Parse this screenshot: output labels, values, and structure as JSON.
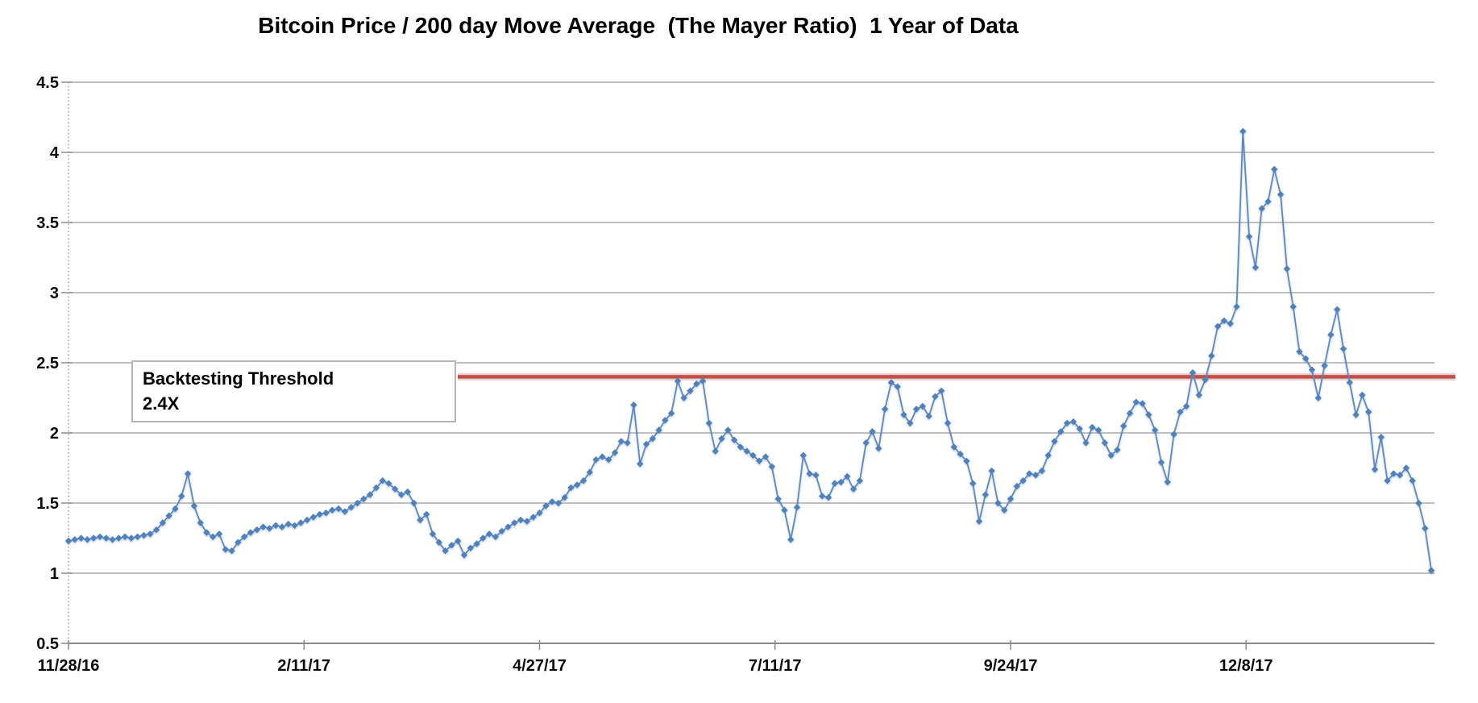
{
  "title": "Bitcoin Price / 200 day Move Average  (The Mayer Ratio)  1 Year of Data",
  "colors": {
    "series_marker": "#4f81bd",
    "series_line": "#5d8ac4",
    "threshold_line": "#bf514b",
    "threshold_glow": "#e2aba7",
    "gridline": "#9b9b9b",
    "axis_line": "#8a8a8a",
    "tick_text": "#0a0a0a"
  },
  "annotation": {
    "line1": "Backtesting Threshold",
    "line2": "2.4X"
  },
  "chart_data": {
    "type": "line",
    "title": "Bitcoin Price / 200 day Move Average  (The Mayer Ratio)  1 Year of Data",
    "marker": "diamond",
    "grid": true,
    "legend": "none",
    "xlabel": "",
    "ylabel": "",
    "ylim": [
      0.5,
      4.5
    ],
    "y_tick_step": 0.5,
    "y_tick_labels": [
      "0.5",
      "1",
      "1.5",
      "2",
      "2.5",
      "3",
      "3.5",
      "4",
      "4.5"
    ],
    "x_range_days": [
      0,
      435
    ],
    "x_tick_days": [
      0,
      75,
      150,
      225,
      300,
      375
    ],
    "x_tick_labels": [
      "11/28/16",
      "2/11/17",
      "4/27/17",
      "7/11/17",
      "9/24/17",
      "12/8/17"
    ],
    "threshold": {
      "value": 2.4,
      "label_line1": "Backtesting Threshold",
      "label_line2": "2.4X"
    },
    "points": [
      [
        0,
        1.23
      ],
      [
        2,
        1.24
      ],
      [
        4,
        1.25
      ],
      [
        6,
        1.24
      ],
      [
        8,
        1.25
      ],
      [
        10,
        1.26
      ],
      [
        12,
        1.25
      ],
      [
        14,
        1.24
      ],
      [
        16,
        1.25
      ],
      [
        18,
        1.26
      ],
      [
        20,
        1.25
      ],
      [
        22,
        1.26
      ],
      [
        24,
        1.27
      ],
      [
        26,
        1.28
      ],
      [
        28,
        1.31
      ],
      [
        30,
        1.36
      ],
      [
        32,
        1.41
      ],
      [
        34,
        1.46
      ],
      [
        36,
        1.55
      ],
      [
        38,
        1.71
      ],
      [
        40,
        1.48
      ],
      [
        42,
        1.36
      ],
      [
        44,
        1.29
      ],
      [
        46,
        1.26
      ],
      [
        48,
        1.28
      ],
      [
        50,
        1.17
      ],
      [
        52,
        1.16
      ],
      [
        54,
        1.22
      ],
      [
        56,
        1.26
      ],
      [
        58,
        1.29
      ],
      [
        60,
        1.31
      ],
      [
        62,
        1.33
      ],
      [
        64,
        1.32
      ],
      [
        66,
        1.34
      ],
      [
        68,
        1.33
      ],
      [
        70,
        1.35
      ],
      [
        72,
        1.34
      ],
      [
        74,
        1.36
      ],
      [
        76,
        1.38
      ],
      [
        78,
        1.4
      ],
      [
        80,
        1.42
      ],
      [
        82,
        1.43
      ],
      [
        84,
        1.45
      ],
      [
        86,
        1.46
      ],
      [
        88,
        1.44
      ],
      [
        90,
        1.47
      ],
      [
        92,
        1.5
      ],
      [
        94,
        1.53
      ],
      [
        96,
        1.56
      ],
      [
        98,
        1.61
      ],
      [
        100,
        1.66
      ],
      [
        102,
        1.64
      ],
      [
        104,
        1.6
      ],
      [
        106,
        1.56
      ],
      [
        108,
        1.58
      ],
      [
        110,
        1.5
      ],
      [
        112,
        1.38
      ],
      [
        114,
        1.42
      ],
      [
        116,
        1.28
      ],
      [
        118,
        1.22
      ],
      [
        120,
        1.16
      ],
      [
        122,
        1.2
      ],
      [
        124,
        1.23
      ],
      [
        126,
        1.13
      ],
      [
        128,
        1.18
      ],
      [
        130,
        1.21
      ],
      [
        132,
        1.25
      ],
      [
        134,
        1.28
      ],
      [
        136,
        1.26
      ],
      [
        138,
        1.3
      ],
      [
        140,
        1.33
      ],
      [
        142,
        1.36
      ],
      [
        144,
        1.38
      ],
      [
        146,
        1.37
      ],
      [
        148,
        1.4
      ],
      [
        150,
        1.43
      ],
      [
        152,
        1.48
      ],
      [
        154,
        1.51
      ],
      [
        156,
        1.5
      ],
      [
        158,
        1.54
      ],
      [
        160,
        1.61
      ],
      [
        162,
        1.63
      ],
      [
        164,
        1.66
      ],
      [
        166,
        1.72
      ],
      [
        168,
        1.81
      ],
      [
        170,
        1.83
      ],
      [
        172,
        1.81
      ],
      [
        174,
        1.86
      ],
      [
        176,
        1.94
      ],
      [
        178,
        1.93
      ],
      [
        180,
        2.2
      ],
      [
        182,
        1.78
      ],
      [
        184,
        1.92
      ],
      [
        186,
        1.96
      ],
      [
        188,
        2.02
      ],
      [
        190,
        2.09
      ],
      [
        192,
        2.14
      ],
      [
        194,
        2.37
      ],
      [
        196,
        2.25
      ],
      [
        198,
        2.3
      ],
      [
        200,
        2.35
      ],
      [
        202,
        2.37
      ],
      [
        204,
        2.07
      ],
      [
        206,
        1.87
      ],
      [
        208,
        1.96
      ],
      [
        210,
        2.02
      ],
      [
        212,
        1.95
      ],
      [
        214,
        1.9
      ],
      [
        216,
        1.87
      ],
      [
        218,
        1.84
      ],
      [
        220,
        1.8
      ],
      [
        222,
        1.83
      ],
      [
        224,
        1.76
      ],
      [
        226,
        1.53
      ],
      [
        228,
        1.45
      ],
      [
        230,
        1.24
      ],
      [
        232,
        1.47
      ],
      [
        234,
        1.84
      ],
      [
        236,
        1.71
      ],
      [
        238,
        1.7
      ],
      [
        240,
        1.55
      ],
      [
        242,
        1.54
      ],
      [
        244,
        1.64
      ],
      [
        246,
        1.65
      ],
      [
        248,
        1.69
      ],
      [
        250,
        1.6
      ],
      [
        252,
        1.66
      ],
      [
        254,
        1.93
      ],
      [
        256,
        2.01
      ],
      [
        258,
        1.89
      ],
      [
        260,
        2.17
      ],
      [
        262,
        2.36
      ],
      [
        264,
        2.33
      ],
      [
        266,
        2.13
      ],
      [
        268,
        2.07
      ],
      [
        270,
        2.17
      ],
      [
        272,
        2.19
      ],
      [
        274,
        2.12
      ],
      [
        276,
        2.26
      ],
      [
        278,
        2.3
      ],
      [
        280,
        2.07
      ],
      [
        282,
        1.9
      ],
      [
        284,
        1.85
      ],
      [
        286,
        1.8
      ],
      [
        288,
        1.64
      ],
      [
        290,
        1.37
      ],
      [
        292,
        1.56
      ],
      [
        294,
        1.73
      ],
      [
        296,
        1.5
      ],
      [
        298,
        1.45
      ],
      [
        300,
        1.53
      ],
      [
        302,
        1.62
      ],
      [
        304,
        1.66
      ],
      [
        306,
        1.71
      ],
      [
        308,
        1.7
      ],
      [
        310,
        1.73
      ],
      [
        312,
        1.84
      ],
      [
        314,
        1.94
      ],
      [
        316,
        2.01
      ],
      [
        318,
        2.07
      ],
      [
        320,
        2.08
      ],
      [
        322,
        2.03
      ],
      [
        324,
        1.93
      ],
      [
        326,
        2.04
      ],
      [
        328,
        2.02
      ],
      [
        330,
        1.93
      ],
      [
        332,
        1.84
      ],
      [
        334,
        1.88
      ],
      [
        336,
        2.05
      ],
      [
        338,
        2.14
      ],
      [
        340,
        2.22
      ],
      [
        342,
        2.21
      ],
      [
        344,
        2.13
      ],
      [
        346,
        2.02
      ],
      [
        348,
        1.79
      ],
      [
        350,
        1.65
      ],
      [
        352,
        1.99
      ],
      [
        354,
        2.15
      ],
      [
        356,
        2.19
      ],
      [
        358,
        2.43
      ],
      [
        360,
        2.27
      ],
      [
        362,
        2.38
      ],
      [
        364,
        2.55
      ],
      [
        366,
        2.76
      ],
      [
        368,
        2.8
      ],
      [
        370,
        2.78
      ],
      [
        372,
        2.9
      ],
      [
        374,
        4.15
      ],
      [
        376,
        3.4
      ],
      [
        378,
        3.18
      ],
      [
        380,
        3.6
      ],
      [
        382,
        3.65
      ],
      [
        384,
        3.88
      ],
      [
        386,
        3.7
      ],
      [
        388,
        3.17
      ],
      [
        390,
        2.9
      ],
      [
        392,
        2.58
      ],
      [
        394,
        2.53
      ],
      [
        396,
        2.45
      ],
      [
        398,
        2.25
      ],
      [
        400,
        2.48
      ],
      [
        402,
        2.7
      ],
      [
        404,
        2.88
      ],
      [
        406,
        2.6
      ],
      [
        408,
        2.36
      ],
      [
        410,
        2.13
      ],
      [
        412,
        2.27
      ],
      [
        414,
        2.15
      ],
      [
        416,
        1.74
      ],
      [
        418,
        1.97
      ],
      [
        420,
        1.66
      ],
      [
        422,
        1.71
      ],
      [
        424,
        1.7
      ],
      [
        426,
        1.75
      ],
      [
        428,
        1.66
      ],
      [
        430,
        1.5
      ],
      [
        432,
        1.32
      ],
      [
        434,
        1.02
      ]
    ]
  }
}
